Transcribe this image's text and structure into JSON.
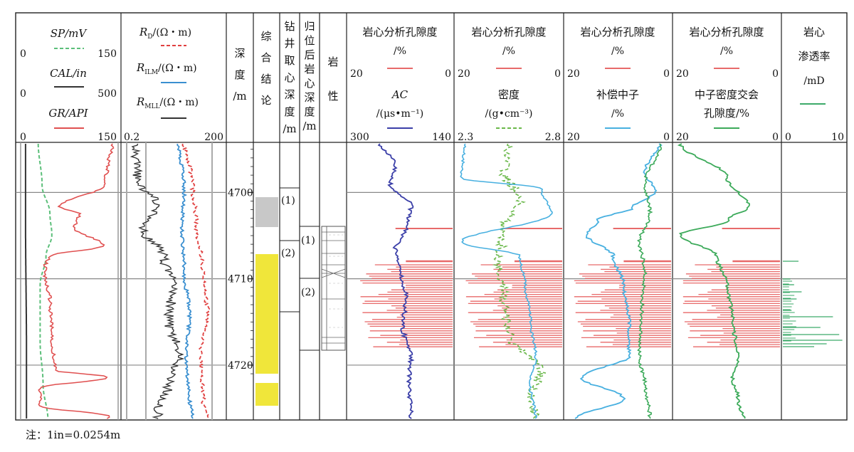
{
  "note": "注：1in=0.0254m",
  "colors": {
    "sp": "#5cbf7a",
    "cal": "#333333",
    "gr": "#e05050",
    "rd": "#e04040",
    "rilm": "#3a8fd0",
    "rmll": "#333333",
    "ac": "#3b3fa8",
    "den": "#6ab84a",
    "cnl": "#48b0e0",
    "nd": "#3caa5a",
    "perm": "#3caa6a",
    "core": "#e86a6a",
    "conclusion_yellow": "#f0e63a",
    "conclusion_gray": "#c8c8c8"
  },
  "tracks": {
    "t1": {
      "sp_label": "SP/mV",
      "sp_min": "0",
      "sp_max": "150",
      "cal_label": "CAL/in",
      "cal_min": "0",
      "cal_max": "500",
      "gr_label": "GR/API",
      "gr_min": "0",
      "gr_max": "150"
    },
    "t2": {
      "rd_label": "R",
      "rd_sub": "D",
      "rd_unit": "/(Ω・m)",
      "rilm_label": "R",
      "rilm_sub": "ILM",
      "rilm_unit": "/(Ω・m)",
      "rmll_label": "R",
      "rmll_sub": "MLL",
      "rmll_unit": "/(Ω・m)",
      "min": "0.2",
      "max": "200"
    },
    "depth": {
      "label": [
        "深",
        "度",
        "/m"
      ]
    },
    "conclusion": {
      "label": [
        "综",
        "合",
        "结",
        "论"
      ]
    },
    "drill": {
      "label": [
        "钻",
        "井",
        "取",
        "心",
        "深",
        "度",
        "/m"
      ]
    },
    "restored": {
      "label": [
        "归",
        "位",
        "后",
        "岩",
        "心",
        "深",
        "度",
        "/m"
      ]
    },
    "lith": {
      "label": [
        "岩",
        "性"
      ]
    },
    "t_ac": {
      "title": "岩心分析孔隙度",
      "unit": "/%",
      "pmin": "20",
      "pmax": "0",
      "curve": "AC",
      "curve_unit": "/(μs•m⁻¹)",
      "cmin": "300",
      "cmax": "140"
    },
    "t_den": {
      "title": "岩心分析孔隙度",
      "unit": "/%",
      "pmin": "20",
      "pmax": "0",
      "curve": "密度",
      "curve_unit": "/(g•cm⁻³)",
      "cmin": "2.3",
      "cmax": "2.8"
    },
    "t_cnl": {
      "title": "岩心分析孔隙度",
      "unit": "/%",
      "pmin": "20",
      "pmax": "0",
      "curve": "补偿中子",
      "curve_unit": "/%",
      "cmin": "20",
      "cmax": "0"
    },
    "t_nd": {
      "title": "岩心分析孔隙度",
      "unit": "/%",
      "pmin": "20",
      "pmax": "0",
      "curve": "中子密度交会",
      "curve2": "孔隙度/%",
      "cmin": "20",
      "cmax": "0"
    },
    "t_perm": {
      "title": "岩心",
      "title2": "渗透率",
      "unit": "/mD",
      "min": "0",
      "max": "10"
    }
  },
  "depth_ticks": [
    "4700",
    "4710",
    "4720"
  ],
  "drill_intervals": [
    "(1)",
    "(2)"
  ],
  "restored_intervals": [
    "(1)",
    "(2)"
  ]
}
